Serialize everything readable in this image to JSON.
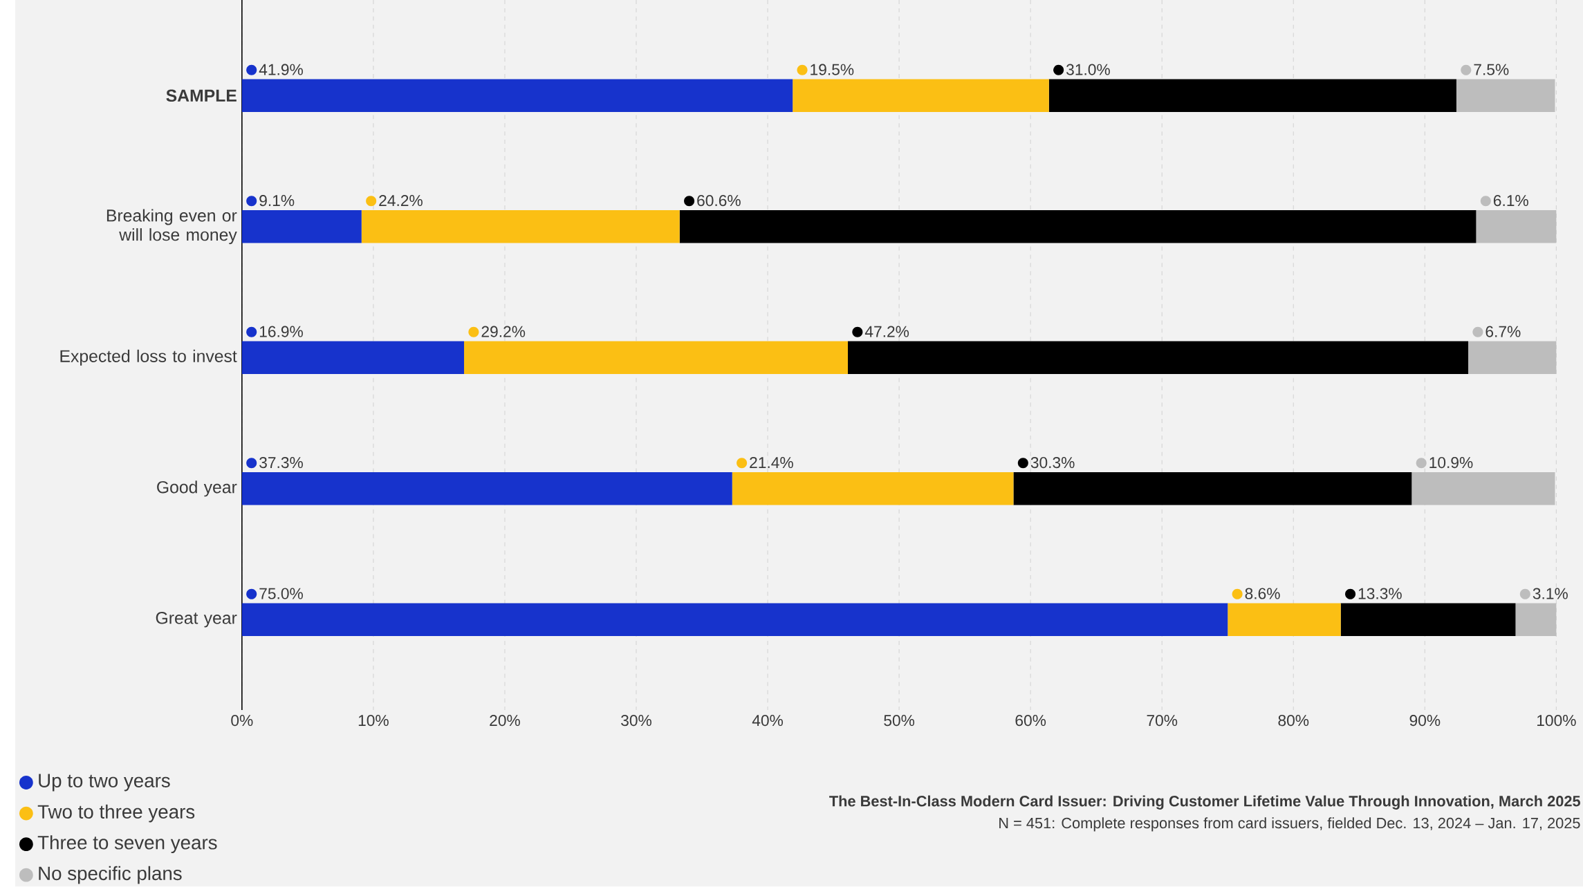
{
  "chart_data": {
    "type": "bar",
    "orientation": "horizontal",
    "stacked": true,
    "categories": [
      "**SAMPLE**",
      "Breaking even or will lose money",
      "Expected loss to invest",
      "Good year",
      "Great year"
    ],
    "series": [
      {
        "name": "Up to two years",
        "color": "#1733cc",
        "values": [
          41.9,
          9.1,
          16.9,
          37.3,
          75.0
        ],
        "value_labels": [
          "41.9%",
          "9.1%",
          "16.9%",
          "37.3%",
          "75.0%"
        ]
      },
      {
        "name": "Two to three years",
        "color": "#fbbf14",
        "values": [
          19.5,
          24.2,
          29.2,
          21.4,
          8.6
        ],
        "value_labels": [
          "19.5%",
          "24.2%",
          "29.2%",
          "21.4%",
          "8.6%"
        ]
      },
      {
        "name": "Three to seven years",
        "color": "#000000",
        "values": [
          31.0,
          60.6,
          47.2,
          30.3,
          13.3
        ],
        "value_labels": [
          "31.0%",
          "60.6%",
          "47.2%",
          "30.3%",
          "13.3%"
        ]
      },
      {
        "name": "No specific plans",
        "color": "#bdbdbd",
        "values": [
          7.5,
          6.1,
          6.7,
          10.9,
          3.1
        ],
        "value_labels": [
          "7.5%",
          "6.1%",
          "6.7%",
          "10.9%",
          "3.1%"
        ]
      }
    ],
    "xlim": [
      0,
      100
    ],
    "xticks": [
      {
        "value": 0,
        "label": "0%"
      },
      {
        "value": 10,
        "label": "10%"
      },
      {
        "value": 20,
        "label": "20%"
      },
      {
        "value": 30,
        "label": "30%"
      },
      {
        "value": 40,
        "label": "40%"
      },
      {
        "value": 50,
        "label": "50%"
      },
      {
        "value": 60,
        "label": "60%"
      },
      {
        "value": 70,
        "label": "70%"
      },
      {
        "value": 80,
        "label": "80%"
      },
      {
        "value": 90,
        "label": "90%"
      },
      {
        "value": 100,
        "label": "100%"
      }
    ],
    "grid": "x",
    "legend": "bottom left",
    "annotations": [
      "**The Best-In-Class Modern Card Issuer: Driving Customer Lifetime Value Through Innovation, March 2025**",
      "N = 451: Complete responses from card issuers, fielded Dec. 13, 2024 – Jan. 17, 2025"
    ]
  }
}
